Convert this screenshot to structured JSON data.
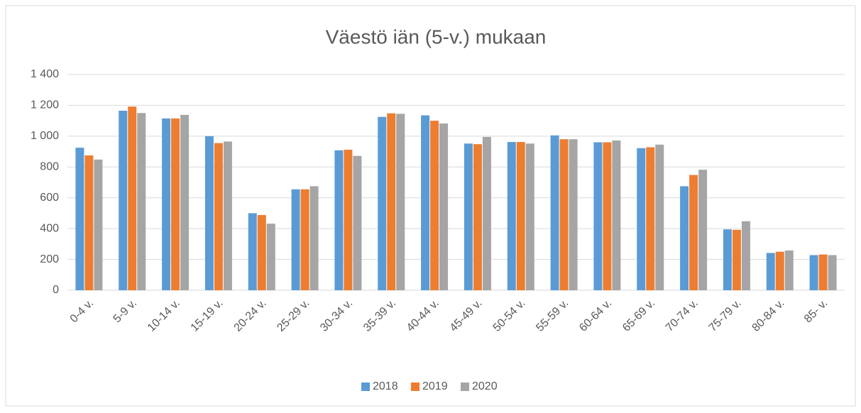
{
  "chart_data": {
    "type": "bar",
    "title": "Väestö iän (5-v.) mukaan",
    "categories": [
      "0-4 v.",
      "5-9 v.",
      "10-14 v.",
      "15-19 v.",
      "20-24 v.",
      "25-29 v.",
      "30-34 v.",
      "35-39 v.",
      "40-44 v.",
      "45-49 v.",
      "50-54 v.",
      "55-59 v.",
      "60-64 v.",
      "65-69 v.",
      "70-74 v.",
      "75-79 v.",
      "80-84 v.",
      "85- v."
    ],
    "series": [
      {
        "name": "2018",
        "color": "#5b9bd5",
        "values": [
          925,
          1165,
          1115,
          1000,
          500,
          655,
          908,
          1125,
          1135,
          952,
          962,
          1005,
          960,
          922,
          675,
          395,
          242,
          228
        ]
      },
      {
        "name": "2019",
        "color": "#ed7d31",
        "values": [
          875,
          1192,
          1115,
          955,
          488,
          655,
          912,
          1148,
          1100,
          948,
          962,
          980,
          960,
          928,
          748,
          392,
          250,
          232
        ]
      },
      {
        "name": "2020",
        "color": "#a5a5a5",
        "values": [
          848,
          1150,
          1138,
          965,
          432,
          675,
          872,
          1145,
          1082,
          995,
          952,
          980,
          972,
          945,
          782,
          448,
          258,
          228
        ]
      }
    ],
    "ylim": [
      0,
      1400
    ],
    "yticks": [
      0,
      200,
      400,
      600,
      800,
      {
        "value": 1000,
        "label": "1 000"
      },
      {
        "value": 1200,
        "label": "1 200"
      },
      {
        "value": 1400,
        "label": "1 400"
      }
    ],
    "grid": true,
    "legend": "bottom"
  }
}
